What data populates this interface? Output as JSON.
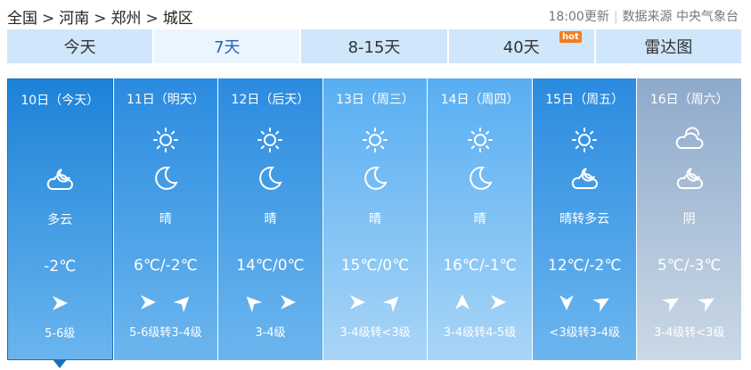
{
  "breadcrumb": [
    "全国",
    "河南",
    "郑州",
    "城区"
  ],
  "breadcrumb_sep": ">",
  "update": {
    "time": "18:00更新",
    "source": "数据来源 中央气象台"
  },
  "tabs": [
    {
      "label": "今天"
    },
    {
      "label": "7天",
      "active": true
    },
    {
      "label": "8-15天"
    },
    {
      "label": "40天",
      "badge": "hot"
    },
    {
      "label": "雷达图"
    }
  ],
  "days": [
    {
      "date": "10日（今天）",
      "icons": [
        "partly-cloudy-night-icon"
      ],
      "weather": "多云",
      "temp": "-2℃",
      "winds": [
        0
      ],
      "level": "5-6级",
      "colors": [
        "#1c82d8",
        "#6ab5ee"
      ],
      "selected": true
    },
    {
      "date": "11日（明天）",
      "icons": [
        "sun-icon",
        "moon-icon"
      ],
      "weather": "晴",
      "temp": "6℃/-2℃",
      "winds": [
        0,
        -45
      ],
      "level": "5-6级转3-4级",
      "colors": [
        "#2b8be0",
        "#6cb6ee"
      ]
    },
    {
      "date": "12日（后天）",
      "icons": [
        "sun-icon",
        "moon-icon"
      ],
      "weather": "晴",
      "temp": "14℃/0℃",
      "winds": [
        -135,
        0
      ],
      "level": "3-4级",
      "colors": [
        "#2b8be0",
        "#6cb6ee"
      ]
    },
    {
      "date": "13日（周三）",
      "icons": [
        "sun-icon",
        "moon-icon"
      ],
      "weather": "晴",
      "temp": "15℃/0℃",
      "winds": [
        0,
        -45
      ],
      "level": "3-4级转<3级",
      "colors": [
        "#58aef2",
        "#a9d5f6"
      ]
    },
    {
      "date": "14日（周四）",
      "icons": [
        "sun-icon",
        "moon-icon"
      ],
      "weather": "晴",
      "temp": "16℃/-1℃",
      "winds": [
        -90,
        0
      ],
      "level": "3-4级转4-5级",
      "colors": [
        "#58aef2",
        "#a9d5f6"
      ]
    },
    {
      "date": "15日（周五）",
      "icons": [
        "sun-icon",
        "partly-cloudy-night-icon"
      ],
      "weather": "晴转多云",
      "temp": "12℃/-2℃",
      "winds": [
        90,
        -30
      ],
      "level": "<3级转3-4级",
      "colors": [
        "#2b8be0",
        "#6cb6ee"
      ]
    },
    {
      "date": "16日（周六）",
      "icons": [
        "cloudy-icon",
        "partly-cloudy-night-icon"
      ],
      "weather": "阴",
      "temp": "5℃/-3℃",
      "winds": [
        -30,
        -30
      ],
      "level": "3-4级转<3级",
      "colors": [
        "#8eaacb",
        "#cbd9e6"
      ]
    }
  ]
}
